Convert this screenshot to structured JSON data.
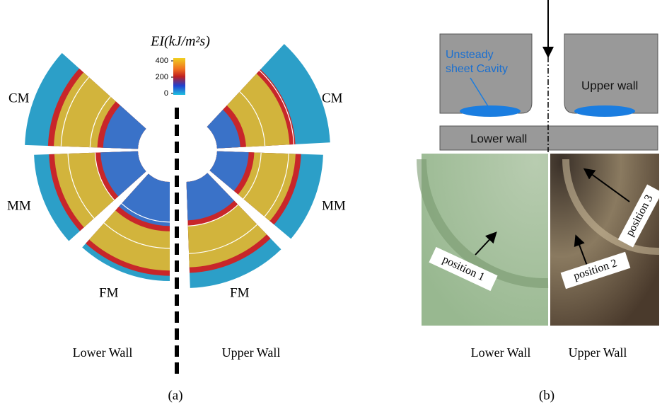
{
  "panel_a": {
    "colorbar": {
      "title": "EI(kJ/m²s)",
      "ticks": [
        0,
        200,
        400
      ]
    },
    "left_labels": [
      "CM",
      "MM",
      "FM"
    ],
    "right_labels": [
      "CM",
      "MM",
      "FM"
    ],
    "captions": [
      "Lower Wall",
      "Upper Wall"
    ],
    "tag": "(a)"
  },
  "panel_b": {
    "callout": [
      "Unsteady",
      "sheet Cavity"
    ],
    "upper_wall": "Upper wall",
    "lower_wall": "Lower wall",
    "positions": [
      "position 1",
      "position 2",
      "position 3"
    ],
    "captions": [
      "Lower Wall",
      "Upper Wall"
    ],
    "tag": "(b)"
  }
}
